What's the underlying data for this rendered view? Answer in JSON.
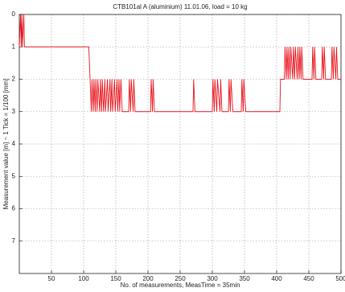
{
  "chart_data": {
    "type": "line",
    "title": "CTB101al A (aluminium) 11.01.06, load = 10 kg",
    "x_label": "No. of measurements, MeasTime = 35min",
    "y_label": "Measurement value [m] ~ 1 Tick = 1/100 [mm]",
    "xlim": [
      0,
      500
    ],
    "xticks": [
      50,
      100,
      150,
      200,
      250,
      300,
      350,
      400,
      450,
      500
    ],
    "ylim": [
      0,
      8
    ],
    "yticks": [
      0,
      1,
      2,
      3,
      4,
      5,
      6,
      7
    ],
    "y_reversed": true,
    "grid": true,
    "series": [
      {
        "color": "#e8141c",
        "x": [
          0,
          2,
          3,
          4,
          5,
          7,
          8,
          108,
          110,
          112,
          113,
          115,
          116,
          118,
          119,
          121,
          122,
          125,
          126,
          128,
          129,
          131,
          133,
          134,
          137,
          138,
          141,
          142,
          144,
          145,
          148,
          149,
          152,
          153,
          155,
          156,
          158,
          160,
          170,
          171,
          173,
          174,
          177,
          178,
          180,
          204,
          205,
          207,
          208,
          210,
          270,
          271,
          273,
          300,
          301,
          303,
          304,
          307,
          308,
          312,
          313,
          315,
          325,
          326,
          328,
          329,
          332,
          345,
          346,
          348,
          349,
          352,
          405,
          406,
          412,
          413,
          415,
          416,
          418,
          419,
          421,
          422,
          425,
          426,
          428,
          429,
          432,
          433,
          435,
          436,
          438,
          439,
          441,
          455,
          456,
          458,
          459,
          461,
          470,
          471,
          473,
          474,
          476,
          485,
          486,
          488,
          489,
          492,
          493,
          495,
          500
        ],
        "values": [
          1,
          0,
          1,
          0,
          1,
          0,
          1,
          1,
          2,
          3,
          2,
          3,
          2,
          3,
          2,
          3,
          2,
          3,
          2,
          3,
          2,
          3,
          2,
          3,
          2,
          3,
          2,
          3,
          2,
          3,
          2,
          3,
          2,
          3,
          2,
          3,
          2,
          3,
          3,
          2,
          3,
          2,
          3,
          2,
          3,
          3,
          2,
          3,
          2,
          3,
          3,
          2,
          3,
          3,
          2,
          3,
          2,
          3,
          2,
          3,
          2,
          3,
          3,
          2,
          3,
          2,
          3,
          3,
          2,
          3,
          2,
          3,
          3,
          2,
          2,
          1,
          2,
          1,
          2,
          1,
          2,
          1,
          2,
          1,
          2,
          1,
          2,
          1,
          2,
          1,
          2,
          1,
          2,
          2,
          1,
          2,
          1,
          2,
          2,
          1,
          2,
          1,
          2,
          2,
          1,
          2,
          1,
          2,
          1,
          2,
          2
        ]
      }
    ]
  }
}
